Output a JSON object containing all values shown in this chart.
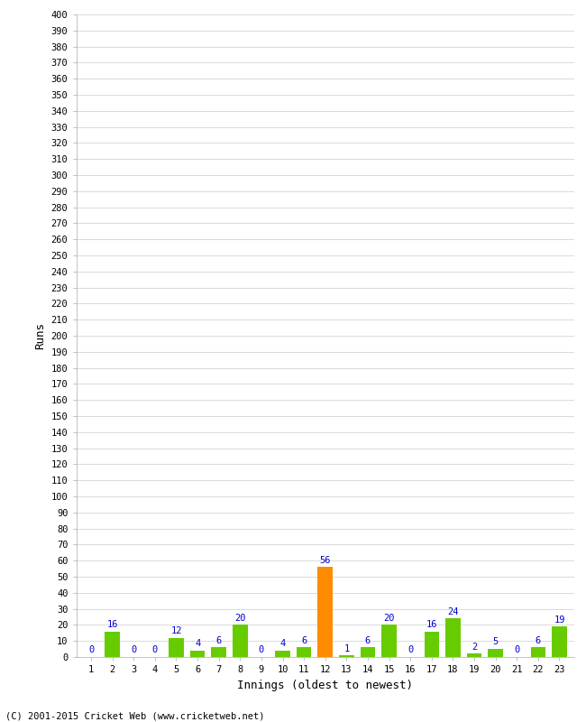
{
  "xlabel": "Innings (oldest to newest)",
  "ylabel": "Runs",
  "footer": "(C) 2001-2015 Cricket Web (www.cricketweb.net)",
  "innings": [
    1,
    2,
    3,
    4,
    5,
    6,
    7,
    8,
    9,
    10,
    11,
    12,
    13,
    14,
    15,
    16,
    17,
    18,
    19,
    20,
    21,
    22,
    23
  ],
  "values": [
    0,
    16,
    0,
    0,
    12,
    4,
    6,
    20,
    0,
    4,
    6,
    56,
    1,
    6,
    20,
    0,
    16,
    24,
    2,
    5,
    0,
    6,
    19
  ],
  "highlight_index": 11,
  "bar_color_normal": "#66cc00",
  "bar_color_highlight": "#ff8c00",
  "label_color": "#0000cc",
  "bg_color": "#ffffff",
  "grid_color": "#cccccc",
  "ylim": [
    0,
    400
  ],
  "fig_width": 6.5,
  "fig_height": 8.0,
  "dpi": 100
}
